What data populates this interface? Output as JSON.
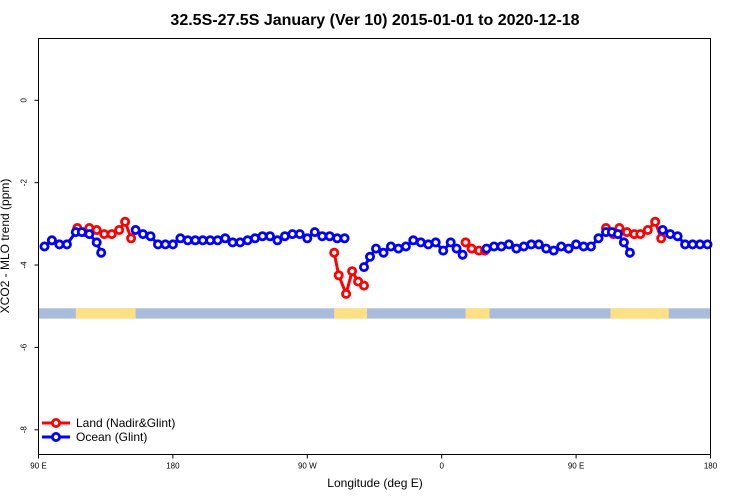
{
  "chart_data": {
    "type": "line",
    "title": "32.5S-27.5S January (Ver 10)   2015-01-01 to 2020-12-18",
    "xlabel": "Longitude (deg E)",
    "ylabel": "XCO2 - MLO trend (ppm)",
    "xlim": [
      90,
      540
    ],
    "ylim": [
      -8.6,
      1.5
    ],
    "x_ticks": [
      {
        "value": 90,
        "label": "90 E"
      },
      {
        "value": 180,
        "label": "180"
      },
      {
        "value": 270,
        "label": "90 W"
      },
      {
        "value": 360,
        "label": "0"
      },
      {
        "value": 450,
        "label": "90 E"
      },
      {
        "value": 540,
        "label": "180"
      }
    ],
    "y_ticks": [
      {
        "value": 0,
        "label": "0"
      },
      {
        "value": -2,
        "label": "-2"
      },
      {
        "value": -4,
        "label": "-4"
      },
      {
        "value": -6,
        "label": "-6"
      },
      {
        "value": -8,
        "label": "-8"
      }
    ],
    "grid": false,
    "legend_position": "bottom-left",
    "surface_band": {
      "y_range": [
        -5.05,
        -5.3
      ],
      "ocean_color": "#a9bcdc",
      "land_color": "#ffe083",
      "land_segments": [
        [
          115,
          155
        ],
        [
          288,
          310
        ],
        [
          376,
          392
        ],
        [
          473,
          512
        ]
      ]
    },
    "series": [
      {
        "name": "Land (Nadir&Glint)",
        "color": "#ff0000",
        "segments": [
          [
            [
              116,
              -3.1
            ],
            [
              121,
              -3.2
            ],
            [
              124,
              -3.1
            ],
            [
              129,
              -3.15
            ],
            [
              134,
              -3.25
            ],
            [
              139,
              -3.25
            ],
            [
              144,
              -3.15
            ],
            [
              148,
              -2.95
            ],
            [
              152,
              -3.35
            ]
          ],
          [
            [
              288,
              -3.7
            ],
            [
              291,
              -4.25
            ],
            [
              296,
              -4.7
            ],
            [
              300,
              -4.15
            ],
            [
              304,
              -4.4
            ],
            [
              308,
              -4.5
            ]
          ],
          [
            [
              376,
              -3.45
            ],
            [
              380,
              -3.6
            ],
            [
              385,
              -3.65
            ],
            [
              389,
              -3.65
            ]
          ],
          [
            [
              470,
              -3.1
            ],
            [
              475,
              -3.25
            ],
            [
              479,
              -3.1
            ],
            [
              484,
              -3.2
            ],
            [
              489,
              -3.25
            ],
            [
              493,
              -3.25
            ],
            [
              498,
              -3.15
            ],
            [
              503,
              -2.95
            ],
            [
              507,
              -3.35
            ]
          ]
        ]
      },
      {
        "name": "Ocean (Glint)",
        "color": "#0000ff",
        "segments": [
          [
            [
              94,
              -3.55
            ],
            [
              99,
              -3.4
            ],
            [
              104,
              -3.5
            ],
            [
              109,
              -3.5
            ],
            [
              115,
              -3.2
            ],
            [
              119,
              -3.2
            ],
            [
              124,
              -3.25
            ],
            [
              129,
              -3.45
            ],
            [
              132,
              -3.7
            ]
          ],
          [
            [
              155,
              -3.15
            ],
            [
              160,
              -3.25
            ],
            [
              165,
              -3.3
            ],
            [
              170,
              -3.5
            ],
            [
              175,
              -3.5
            ],
            [
              180,
              -3.5
            ],
            [
              185,
              -3.35
            ],
            [
              190,
              -3.4
            ],
            [
              195,
              -3.4
            ],
            [
              200,
              -3.4
            ],
            [
              205,
              -3.4
            ],
            [
              210,
              -3.4
            ],
            [
              215,
              -3.35
            ],
            [
              220,
              -3.45
            ],
            [
              225,
              -3.45
            ],
            [
              230,
              -3.4
            ],
            [
              235,
              -3.35
            ],
            [
              240,
              -3.3
            ],
            [
              245,
              -3.3
            ],
            [
              250,
              -3.4
            ],
            [
              255,
              -3.3
            ],
            [
              260,
              -3.25
            ],
            [
              265,
              -3.25
            ],
            [
              270,
              -3.35
            ],
            [
              275,
              -3.2
            ],
            [
              280,
              -3.3
            ],
            [
              285,
              -3.3
            ],
            [
              290,
              -3.35
            ],
            [
              295,
              -3.35
            ]
          ],
          [
            [
              308,
              -4.05
            ],
            [
              312,
              -3.8
            ],
            [
              316,
              -3.6
            ],
            [
              321,
              -3.7
            ],
            [
              326,
              -3.55
            ],
            [
              331,
              -3.6
            ],
            [
              336,
              -3.55
            ],
            [
              341,
              -3.4
            ],
            [
              346,
              -3.45
            ],
            [
              351,
              -3.5
            ],
            [
              356,
              -3.45
            ],
            [
              361,
              -3.65
            ],
            [
              366,
              -3.45
            ],
            [
              370,
              -3.6
            ],
            [
              374,
              -3.75
            ]
          ],
          [
            [
              390,
              -3.6
            ],
            [
              395,
              -3.55
            ],
            [
              400,
              -3.55
            ],
            [
              405,
              -3.5
            ],
            [
              410,
              -3.6
            ],
            [
              415,
              -3.55
            ],
            [
              420,
              -3.5
            ],
            [
              425,
              -3.5
            ],
            [
              430,
              -3.6
            ],
            [
              435,
              -3.65
            ],
            [
              440,
              -3.55
            ],
            [
              445,
              -3.6
            ],
            [
              450,
              -3.5
            ],
            [
              455,
              -3.55
            ],
            [
              460,
              -3.55
            ],
            [
              465,
              -3.35
            ],
            [
              470,
              -3.2
            ],
            [
              474,
              -3.2
            ],
            [
              478,
              -3.25
            ],
            [
              482,
              -3.45
            ],
            [
              486,
              -3.7
            ]
          ],
          [
            [
              508,
              -3.15
            ],
            [
              513,
              -3.25
            ],
            [
              518,
              -3.3
            ],
            [
              523,
              -3.5
            ],
            [
              528,
              -3.5
            ],
            [
              533,
              -3.5
            ],
            [
              538,
              -3.5
            ]
          ]
        ]
      }
    ]
  }
}
